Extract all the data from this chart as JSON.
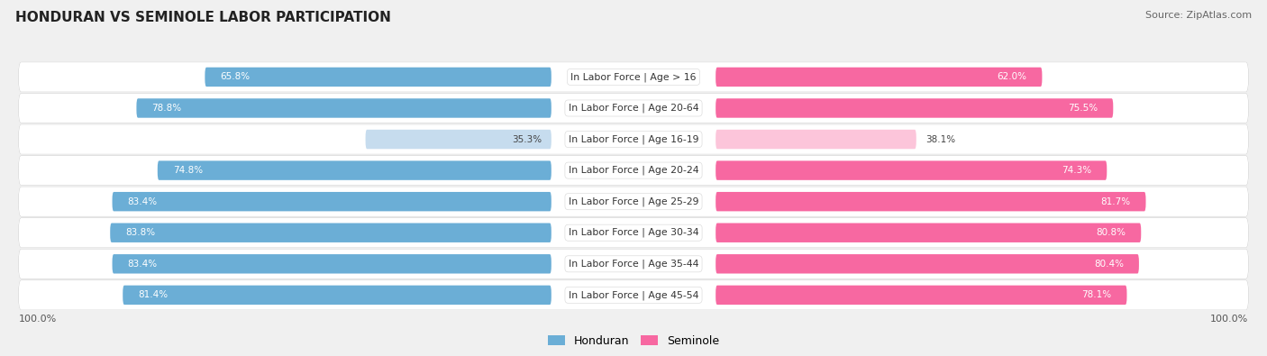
{
  "title": "HONDURAN VS SEMINOLE LABOR PARTICIPATION",
  "source": "Source: ZipAtlas.com",
  "categories": [
    "In Labor Force | Age > 16",
    "In Labor Force | Age 20-64",
    "In Labor Force | Age 16-19",
    "In Labor Force | Age 20-24",
    "In Labor Force | Age 25-29",
    "In Labor Force | Age 30-34",
    "In Labor Force | Age 35-44",
    "In Labor Force | Age 45-54"
  ],
  "honduran_values": [
    65.8,
    78.8,
    35.3,
    74.8,
    83.4,
    83.8,
    83.4,
    81.4
  ],
  "seminole_values": [
    62.0,
    75.5,
    38.1,
    74.3,
    81.7,
    80.8,
    80.4,
    78.1
  ],
  "honduran_color": "#6baed6",
  "seminole_color": "#f768a1",
  "honduran_color_light": "#c6dcee",
  "seminole_color_light": "#fcc5da",
  "bg_color": "#f0f0f0",
  "bar_height": 0.62,
  "max_value": 100.0,
  "legend_honduran": "Honduran",
  "legend_seminole": "Seminole",
  "label_threshold": 50
}
